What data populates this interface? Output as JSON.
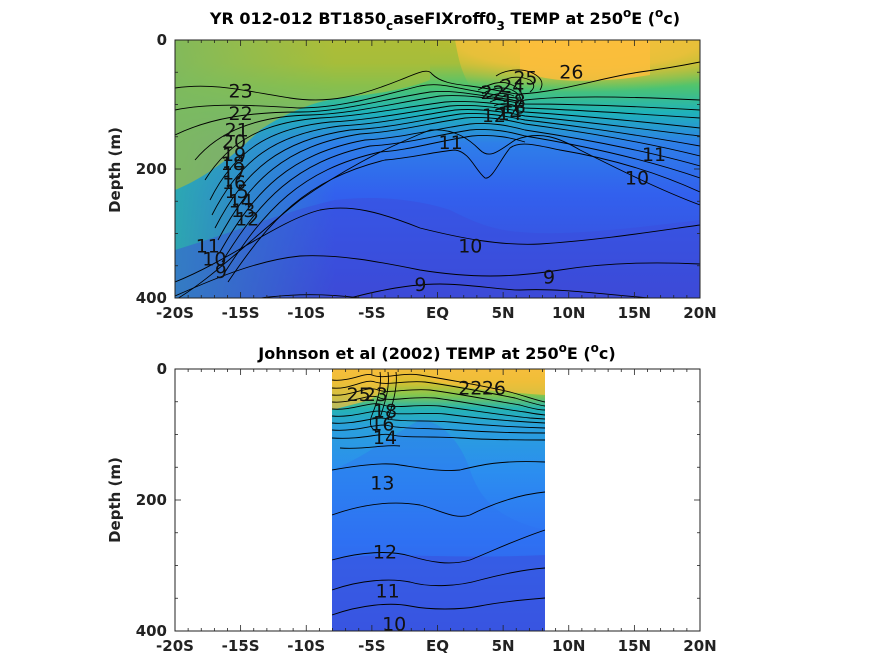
{
  "chart_data": [
    {
      "type": "heatmap",
      "title_main": "YR 012-012 BT1850",
      "title_sub": "c",
      "title_mid": "aseFIXroff0",
      "title_sub2": "3",
      "title_tail": " TEMP at 250",
      "title_sup": "o",
      "title_tail2": "E (",
      "title_sup2": "o",
      "title_end": "c)",
      "ylabel": "Depth (m)",
      "xlim": [
        -20,
        20
      ],
      "ylim": [
        0,
        400
      ],
      "xticks": [
        -20,
        -15,
        -10,
        -5,
        0,
        5,
        10,
        15,
        20
      ],
      "xtick_labels": [
        "-20S",
        "-15S",
        "-10S",
        "-5S",
        "EQ",
        "5N",
        "10N",
        "15N",
        "20N"
      ],
      "yticks": [
        0,
        200,
        400
      ],
      "ytick_labels": [
        "0",
        "200",
        "400"
      ],
      "colormap": [
        "#3e26a8",
        "#2f63f4",
        "#2d9ae0",
        "#1fb7b9",
        "#5cc863",
        "#c4c02a",
        "#fdbe3d",
        "#f9fb15"
      ],
      "clim": [
        6,
        28
      ],
      "contour_labels": [
        {
          "text": "23",
          "x": -15.0,
          "y": 80
        },
        {
          "text": "22",
          "x": -15.0,
          "y": 115
        },
        {
          "text": "21",
          "x": -15.3,
          "y": 140
        },
        {
          "text": "20",
          "x": -15.5,
          "y": 158
        },
        {
          "text": "19",
          "x": -15.5,
          "y": 178
        },
        {
          "text": "18",
          "x": -15.6,
          "y": 192
        },
        {
          "text": "17",
          "x": -15.5,
          "y": 207
        },
        {
          "text": "16",
          "x": -15.5,
          "y": 222
        },
        {
          "text": "15",
          "x": -15.3,
          "y": 236
        },
        {
          "text": "14",
          "x": -15.0,
          "y": 250
        },
        {
          "text": "13",
          "x": -14.8,
          "y": 265
        },
        {
          "text": "12",
          "x": -14.5,
          "y": 278
        },
        {
          "text": "11",
          "x": -17.5,
          "y": 320
        },
        {
          "text": "10",
          "x": -17.0,
          "y": 340
        },
        {
          "text": "9",
          "x": -16.5,
          "y": 360
        },
        {
          "text": "11",
          "x": 1.0,
          "y": 160
        },
        {
          "text": "10",
          "x": 2.5,
          "y": 320
        },
        {
          "text": "9",
          "x": -1.3,
          "y": 380
        },
        {
          "text": "9",
          "x": 8.5,
          "y": 368
        },
        {
          "text": "11",
          "x": 16.5,
          "y": 178
        },
        {
          "text": "10",
          "x": 15.2,
          "y": 215
        },
        {
          "text": "26",
          "x": 10.2,
          "y": 50
        },
        {
          "text": "25",
          "x": 6.7,
          "y": 60
        },
        {
          "text": "24",
          "x": 5.7,
          "y": 72
        },
        {
          "text": "22",
          "x": 4.2,
          "y": 82
        },
        {
          "text": "18",
          "x": 5.8,
          "y": 95
        },
        {
          "text": "16",
          "x": 5.8,
          "y": 105
        },
        {
          "text": "14",
          "x": 5.5,
          "y": 115
        },
        {
          "text": "12",
          "x": 4.3,
          "y": 118
        }
      ]
    },
    {
      "type": "heatmap",
      "title_main": "Johnson et al (2002) TEMP at 250",
      "title_sup": "o",
      "title_tail": "E (",
      "title_sup2": "o",
      "title_end": "c)",
      "ylabel": "Depth (m)",
      "xlim": [
        -20,
        20
      ],
      "ylim": [
        0,
        400
      ],
      "data_xlim": [
        -8,
        8.2
      ],
      "xticks": [
        -20,
        -15,
        -10,
        -5,
        0,
        5,
        10,
        15,
        20
      ],
      "xtick_labels": [
        "-20S",
        "-15S",
        "-10S",
        "-5S",
        "EQ",
        "5N",
        "10N",
        "15N",
        "20N"
      ],
      "yticks": [
        0,
        200,
        400
      ],
      "ytick_labels": [
        "0",
        "200",
        "400"
      ],
      "contour_labels": [
        {
          "text": "25",
          "x": -6.0,
          "y": 40
        },
        {
          "text": "23",
          "x": -4.7,
          "y": 40
        },
        {
          "text": "22",
          "x": 2.5,
          "y": 30
        },
        {
          "text": "26",
          "x": 4.3,
          "y": 30
        },
        {
          "text": "18",
          "x": -4.0,
          "y": 65
        },
        {
          "text": "16",
          "x": -4.2,
          "y": 85
        },
        {
          "text": "14",
          "x": -4.0,
          "y": 105
        },
        {
          "text": "13",
          "x": -4.2,
          "y": 175
        },
        {
          "text": "12",
          "x": -4.0,
          "y": 280
        },
        {
          "text": "11",
          "x": -3.8,
          "y": 340
        },
        {
          "text": "10",
          "x": -3.3,
          "y": 390
        }
      ]
    }
  ]
}
